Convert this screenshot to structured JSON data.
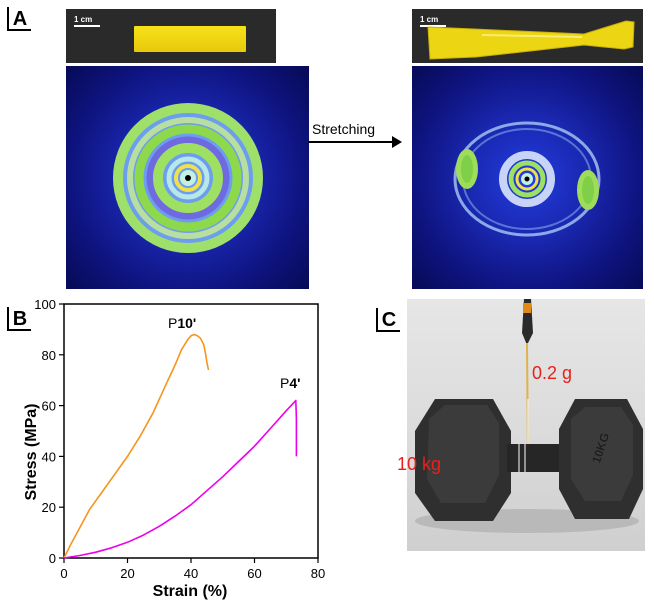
{
  "panels": {
    "a": "A",
    "b": "B",
    "c": "C"
  },
  "panel_a": {
    "scale_left": "1 cm",
    "scale_right": "1 cm",
    "arrow_label": "Stretching"
  },
  "panel_c": {
    "label_weight_small": "0.2 g",
    "label_weight_big": "10 kg",
    "dumbbell_print": "10KG"
  },
  "colors": {
    "p10": "#f7941d",
    "p4": "#ec00ec",
    "xrd_bg": "#1a26b0",
    "ring_green": "#8ee04a"
  },
  "chart_data": {
    "type": "line",
    "xlabel": "Strain (%)",
    "ylabel": "Stress (MPa)",
    "xlim": [
      0,
      80
    ],
    "ylim": [
      0,
      100
    ],
    "xticks": [
      "0",
      "20",
      "40",
      "60",
      "80"
    ],
    "yticks": [
      "0",
      "20",
      "40",
      "60",
      "80",
      "100"
    ],
    "series": [
      {
        "name": "P10'",
        "label_prefix": "P",
        "label_bold": "10'",
        "color": "#f7941d",
        "x": [
          0,
          2,
          5,
          8,
          12,
          16,
          20,
          24,
          28,
          32,
          35,
          37,
          39,
          40,
          41,
          42,
          43,
          44,
          44.5,
          45,
          45.5
        ],
        "y": [
          0,
          5,
          12,
          19,
          26,
          33,
          40,
          48,
          57,
          68,
          76,
          82,
          86,
          87.5,
          88,
          87.5,
          86.5,
          84,
          81,
          77,
          74
        ]
      },
      {
        "name": "P4'",
        "label_prefix": "P",
        "label_bold": "4'",
        "color": "#ec00ec",
        "x": [
          0,
          5,
          10,
          15,
          20,
          25,
          30,
          35,
          40,
          45,
          50,
          55,
          60,
          65,
          70,
          73,
          73.2,
          73.2
        ],
        "y": [
          0,
          1,
          2.3,
          4,
          6.2,
          9,
          12.5,
          16.5,
          21,
          26.5,
          32,
          38,
          44,
          51,
          58,
          62,
          55,
          40
        ]
      }
    ]
  }
}
